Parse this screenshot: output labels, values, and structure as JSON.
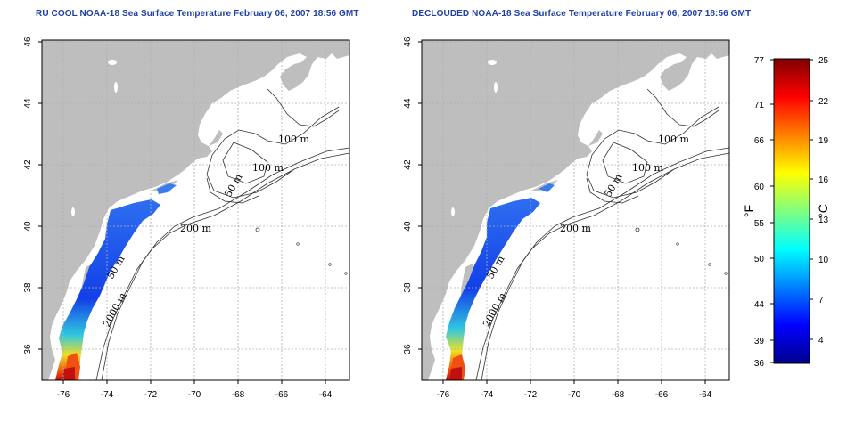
{
  "maps": [
    {
      "title": "RU COOL NOAA-18 Sea Surface Temperature February 06, 2007 18:56 GMT",
      "longitude_ticks": [
        "-76",
        "-74",
        "-72",
        "-70",
        "-68",
        "-66",
        "-64"
      ],
      "latitude_ticks": [
        "46",
        "44",
        "42",
        "40",
        "38",
        "36"
      ],
      "contour_labels": [
        "100 m",
        "100 m",
        "50 m",
        "200 m",
        "50 m",
        "2000 m"
      ]
    },
    {
      "title": "DECLOUDED NOAA-18 Sea Surface Temperature February 06, 2007 18:56 GMT",
      "longitude_ticks": [
        "-76",
        "-74",
        "-72",
        "-70",
        "-68",
        "-66",
        "-64"
      ],
      "latitude_ticks": [
        "46",
        "44",
        "42",
        "40",
        "38",
        "36"
      ],
      "contour_labels": [
        "100 m",
        "100 m",
        "50 m",
        "200 m",
        "50 m",
        "2000 m"
      ]
    }
  ],
  "colorbar": {
    "fahrenheit_ticks": [
      "77",
      "71",
      "66",
      "60",
      "55",
      "50",
      "44",
      "39",
      "36"
    ],
    "celsius_ticks": [
      "25",
      "22",
      "19",
      "16",
      "13",
      "10",
      "7",
      "4"
    ],
    "fahrenheit_unit": "°F",
    "celsius_unit": "°C",
    "gradient_colors": [
      "#00008f",
      "#0000ff",
      "#0080ff",
      "#00ffff",
      "#80ff80",
      "#ffff00",
      "#ff8000",
      "#ff0000",
      "#800000"
    ]
  },
  "colors": {
    "land": "#bebebe",
    "ocean": "#ffffff",
    "title": "#1f3fa8",
    "grid": "#b0b0b0"
  }
}
